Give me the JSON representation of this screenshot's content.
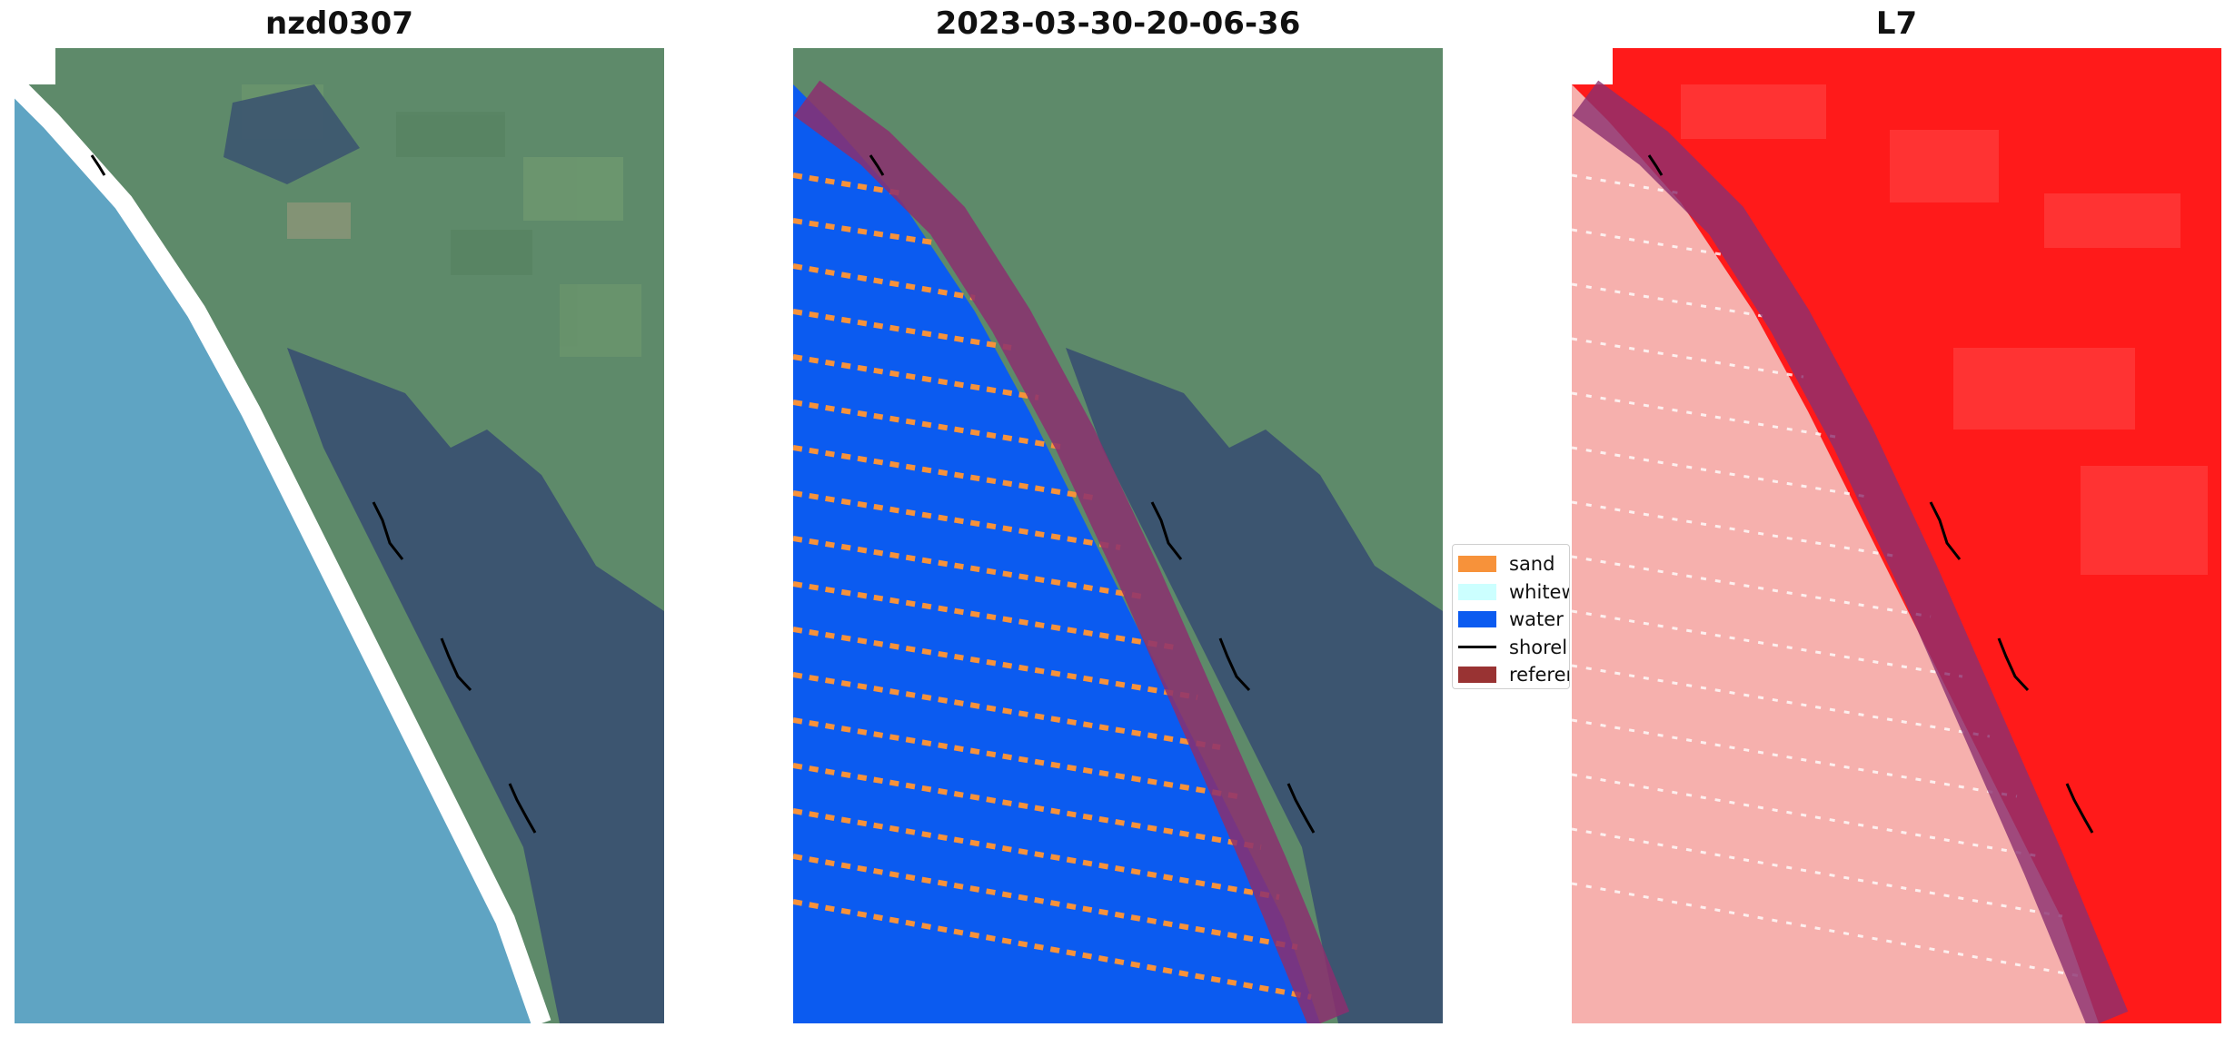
{
  "panels": [
    {
      "title": "nzd0307",
      "image": "rgb-satellite-image"
    },
    {
      "title": "2023-03-30-20-06-36",
      "image": "classified-image"
    },
    {
      "title": "L7",
      "image": "index-image"
    }
  ],
  "legend": {
    "items": [
      {
        "label": "sand",
        "color": "#f7923a",
        "kind": "patch"
      },
      {
        "label": "whitew",
        "color": "#ccffff",
        "kind": "patch"
      },
      {
        "label": "water",
        "color": "#0b5bf0",
        "kind": "patch"
      },
      {
        "label": "shorel",
        "color": "#000000",
        "kind": "line"
      },
      {
        "label": "referen",
        "color": "#993333",
        "kind": "patch"
      }
    ]
  },
  "colors": {
    "sea": "#5fa4c3",
    "land": "#5e8a6a",
    "forest": "#3c5570",
    "beach": "#ffffff",
    "water_class": "#0b5bf0",
    "sand_class": "#f7923a",
    "buffer": "#8b2f6f",
    "index_high": "#ff1a1a",
    "index_low": "#f6b0ad",
    "shoreline": "#000000"
  }
}
